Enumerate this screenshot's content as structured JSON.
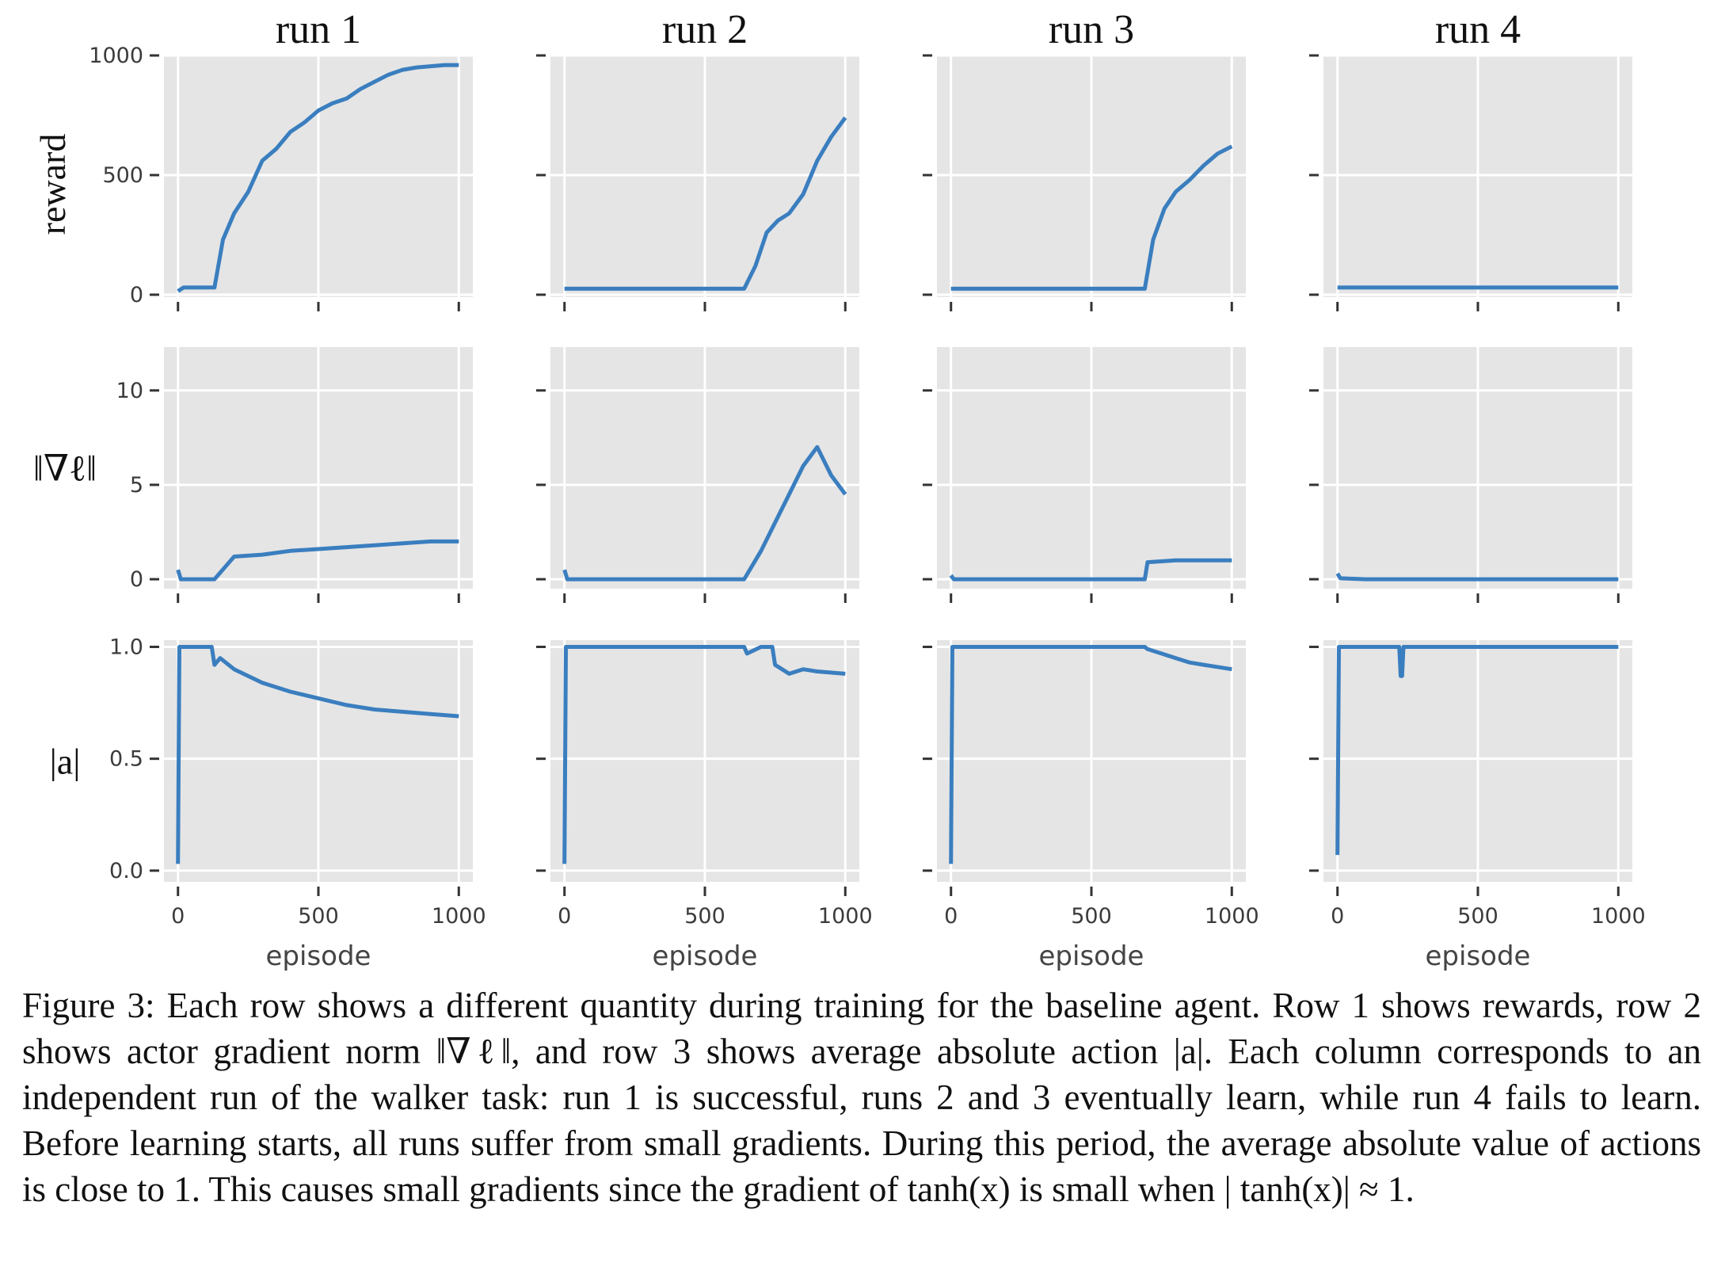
{
  "chart_data": {
    "type": "line",
    "layout": "grid-3x4",
    "columns": [
      "run 1",
      "run 2",
      "run 3",
      "run 4"
    ],
    "rows": [
      {
        "ylabel": "reward",
        "yticks": [
          0,
          500,
          1000
        ],
        "tick_labels": [
          "0",
          "500",
          "1000"
        ],
        "ylim": [
          -10,
          1000
        ]
      },
      {
        "ylabel": "‖∇ℓ‖",
        "yticks": [
          0,
          5,
          10
        ],
        "tick_labels": [
          "0",
          "5",
          "10"
        ],
        "ylim": [
          -0.5,
          12.3
        ]
      },
      {
        "ylabel": "|a|",
        "yticks": [
          0.0,
          0.5,
          1.0
        ],
        "tick_labels": [
          "0.0",
          "0.5",
          "1.0"
        ],
        "ylim": [
          -0.05,
          1.03
        ]
      }
    ],
    "xlabel": "episode",
    "xticks": [
      0,
      500,
      1000
    ],
    "xtick_labels": [
      "0",
      "500",
      "1000"
    ],
    "xlim": [
      -50,
      1050
    ],
    "grid": true,
    "series_color": "#3a7ebf",
    "background_color": "#e5e5e5",
    "series": [
      {
        "row": 0,
        "col": 0,
        "x": [
          0,
          20,
          130,
          160,
          200,
          250,
          300,
          350,
          400,
          450,
          500,
          550,
          600,
          650,
          700,
          750,
          800,
          850,
          900,
          950,
          1000
        ],
        "y": [
          15,
          30,
          30,
          230,
          340,
          430,
          560,
          610,
          680,
          720,
          770,
          800,
          820,
          860,
          890,
          920,
          940,
          950,
          955,
          960,
          960
        ]
      },
      {
        "row": 0,
        "col": 1,
        "x": [
          0,
          100,
          200,
          300,
          400,
          500,
          600,
          640,
          680,
          720,
          760,
          800,
          850,
          900,
          950,
          1000
        ],
        "y": [
          25,
          25,
          25,
          25,
          25,
          25,
          25,
          25,
          120,
          260,
          310,
          340,
          420,
          560,
          660,
          740
        ]
      },
      {
        "row": 0,
        "col": 2,
        "x": [
          0,
          100,
          200,
          300,
          400,
          500,
          600,
          650,
          690,
          720,
          760,
          800,
          850,
          900,
          950,
          1000
        ],
        "y": [
          25,
          25,
          25,
          25,
          25,
          25,
          25,
          25,
          25,
          230,
          360,
          430,
          480,
          540,
          590,
          620
        ]
      },
      {
        "row": 0,
        "col": 3,
        "x": [
          0,
          100,
          200,
          300,
          400,
          500,
          600,
          700,
          800,
          900,
          1000
        ],
        "y": [
          30,
          30,
          30,
          30,
          30,
          30,
          30,
          30,
          30,
          30,
          30
        ]
      },
      {
        "row": 1,
        "col": 0,
        "x": [
          0,
          10,
          130,
          200,
          300,
          400,
          500,
          600,
          700,
          800,
          900,
          1000
        ],
        "y": [
          0.5,
          0.0,
          0.0,
          1.2,
          1.3,
          1.5,
          1.6,
          1.7,
          1.8,
          1.9,
          2.0,
          2.0
        ]
      },
      {
        "row": 1,
        "col": 1,
        "x": [
          0,
          10,
          100,
          200,
          300,
          400,
          500,
          600,
          640,
          700,
          750,
          800,
          850,
          900,
          950,
          1000
        ],
        "y": [
          0.5,
          0.0,
          0.0,
          0.0,
          0.0,
          0.0,
          0.0,
          0.0,
          0.0,
          1.5,
          3.0,
          4.5,
          6.0,
          7.0,
          5.5,
          4.5
        ]
      },
      {
        "row": 1,
        "col": 2,
        "x": [
          0,
          10,
          100,
          300,
          500,
          690,
          700,
          800,
          900,
          1000
        ],
        "y": [
          0.2,
          0.0,
          0.0,
          0.0,
          0.0,
          0.0,
          0.9,
          1.0,
          1.0,
          1.0
        ]
      },
      {
        "row": 1,
        "col": 3,
        "x": [
          0,
          10,
          100,
          300,
          500,
          700,
          900,
          1000
        ],
        "y": [
          0.3,
          0.05,
          0.0,
          0.0,
          0.0,
          0.0,
          0.0,
          0.0
        ]
      },
      {
        "row": 2,
        "col": 0,
        "x": [
          0,
          5,
          10,
          120,
          130,
          150,
          200,
          300,
          400,
          500,
          600,
          700,
          800,
          900,
          1000
        ],
        "y": [
          0.03,
          1.0,
          1.0,
          1.0,
          0.92,
          0.95,
          0.9,
          0.84,
          0.8,
          0.77,
          0.74,
          0.72,
          0.71,
          0.7,
          0.69
        ]
      },
      {
        "row": 2,
        "col": 1,
        "x": [
          0,
          5,
          10,
          640,
          650,
          700,
          740,
          750,
          800,
          850,
          900,
          1000
        ],
        "y": [
          0.03,
          1.0,
          1.0,
          1.0,
          0.97,
          1.0,
          1.0,
          0.92,
          0.88,
          0.9,
          0.89,
          0.88
        ]
      },
      {
        "row": 2,
        "col": 2,
        "x": [
          0,
          5,
          10,
          690,
          700,
          750,
          800,
          850,
          900,
          1000
        ],
        "y": [
          0.03,
          1.0,
          1.0,
          1.0,
          0.99,
          0.97,
          0.95,
          0.93,
          0.92,
          0.9
        ]
      },
      {
        "row": 2,
        "col": 3,
        "x": [
          0,
          5,
          10,
          220,
          225,
          230,
          235,
          1000
        ],
        "y": [
          0.07,
          1.0,
          1.0,
          1.0,
          0.87,
          0.87,
          1.0,
          1.0
        ]
      }
    ]
  },
  "caption": {
    "text": "Figure 3: Each row shows a different quantity during training for the baseline agent. Row 1 shows rewards, row 2 shows actor gradient norm ‖∇ℓ‖, and row 3 shows average absolute action |a|. Each column corresponds to an independent run of the walker task: run 1 is successful, runs 2 and 3 eventually learn, while run 4 fails to learn. Before learning starts, all runs suffer from small gradients. During this period, the average absolute value of actions is close to 1. This causes small gradients since the gradient of tanh(x) is small when | tanh(x)| ≈ 1."
  }
}
